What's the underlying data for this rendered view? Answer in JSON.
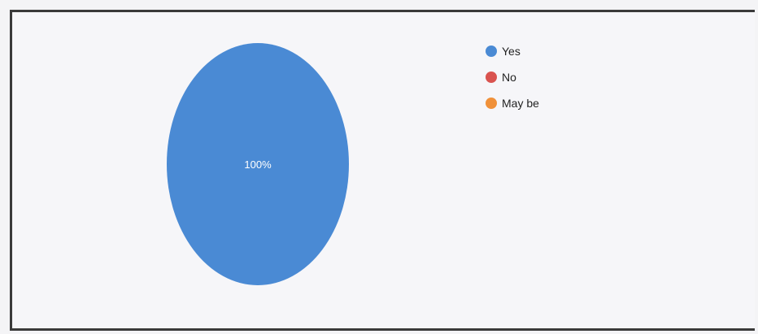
{
  "chart_data": {
    "type": "pie",
    "categories": [
      "Yes",
      "No",
      "May be"
    ],
    "values": [
      100,
      0,
      0
    ],
    "slice_labels": [
      "100%",
      "",
      ""
    ],
    "colors": [
      "#4a8ad4",
      "#d9534f",
      "#f0913a"
    ],
    "legend_position": "top-right"
  }
}
